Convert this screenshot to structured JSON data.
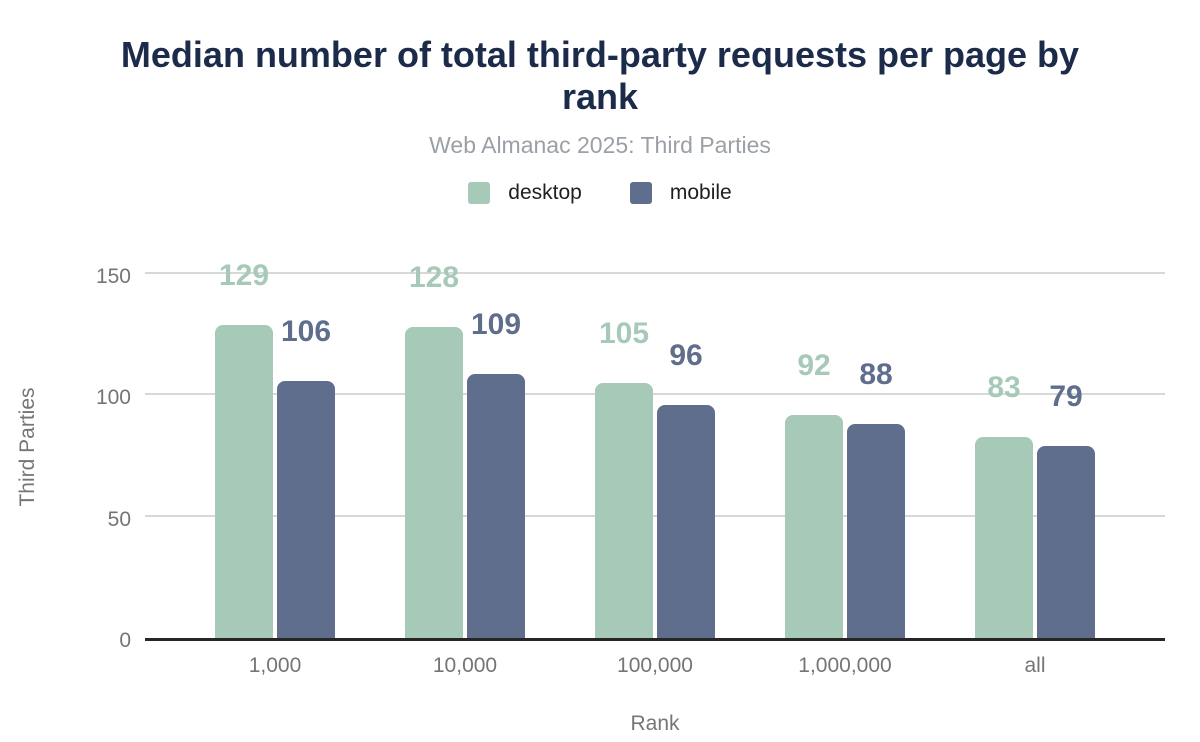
{
  "header": {
    "title": "Median number of total third-party requests per page by rank",
    "subtitle": "Web Almanac 2025: Third Parties"
  },
  "legend": {
    "items": [
      {
        "label": "desktop",
        "color": "#a7c9b8"
      },
      {
        "label": "mobile",
        "color": "#5f6e8c"
      }
    ]
  },
  "chart_data": {
    "type": "bar",
    "title": "Median number of total third-party requests per page by rank",
    "subtitle": "Web Almanac 2025: Third Parties",
    "categories": [
      "1,000",
      "10,000",
      "100,000",
      "1,000,000",
      "all"
    ],
    "series": [
      {
        "name": "desktop",
        "color": "#a7c9b8",
        "values": [
          129,
          128,
          105,
          92,
          83
        ]
      },
      {
        "name": "mobile",
        "color": "#5f6e8c",
        "values": [
          106,
          109,
          96,
          88,
          79
        ]
      }
    ],
    "xlabel": "Rank",
    "ylabel": "Third Parties",
    "ylim": [
      0,
      150
    ],
    "yticks": [
      0,
      50,
      100,
      150
    ],
    "grid": true,
    "legend_position": "top",
    "value_labels": true
  },
  "colors": {
    "title": "#1c2b4a",
    "subtitle": "#9aa0a6",
    "axis_text": "#757575",
    "gridline": "#d8d8d8",
    "baseline": "#262626",
    "legend_text": "#1f1f1f"
  }
}
